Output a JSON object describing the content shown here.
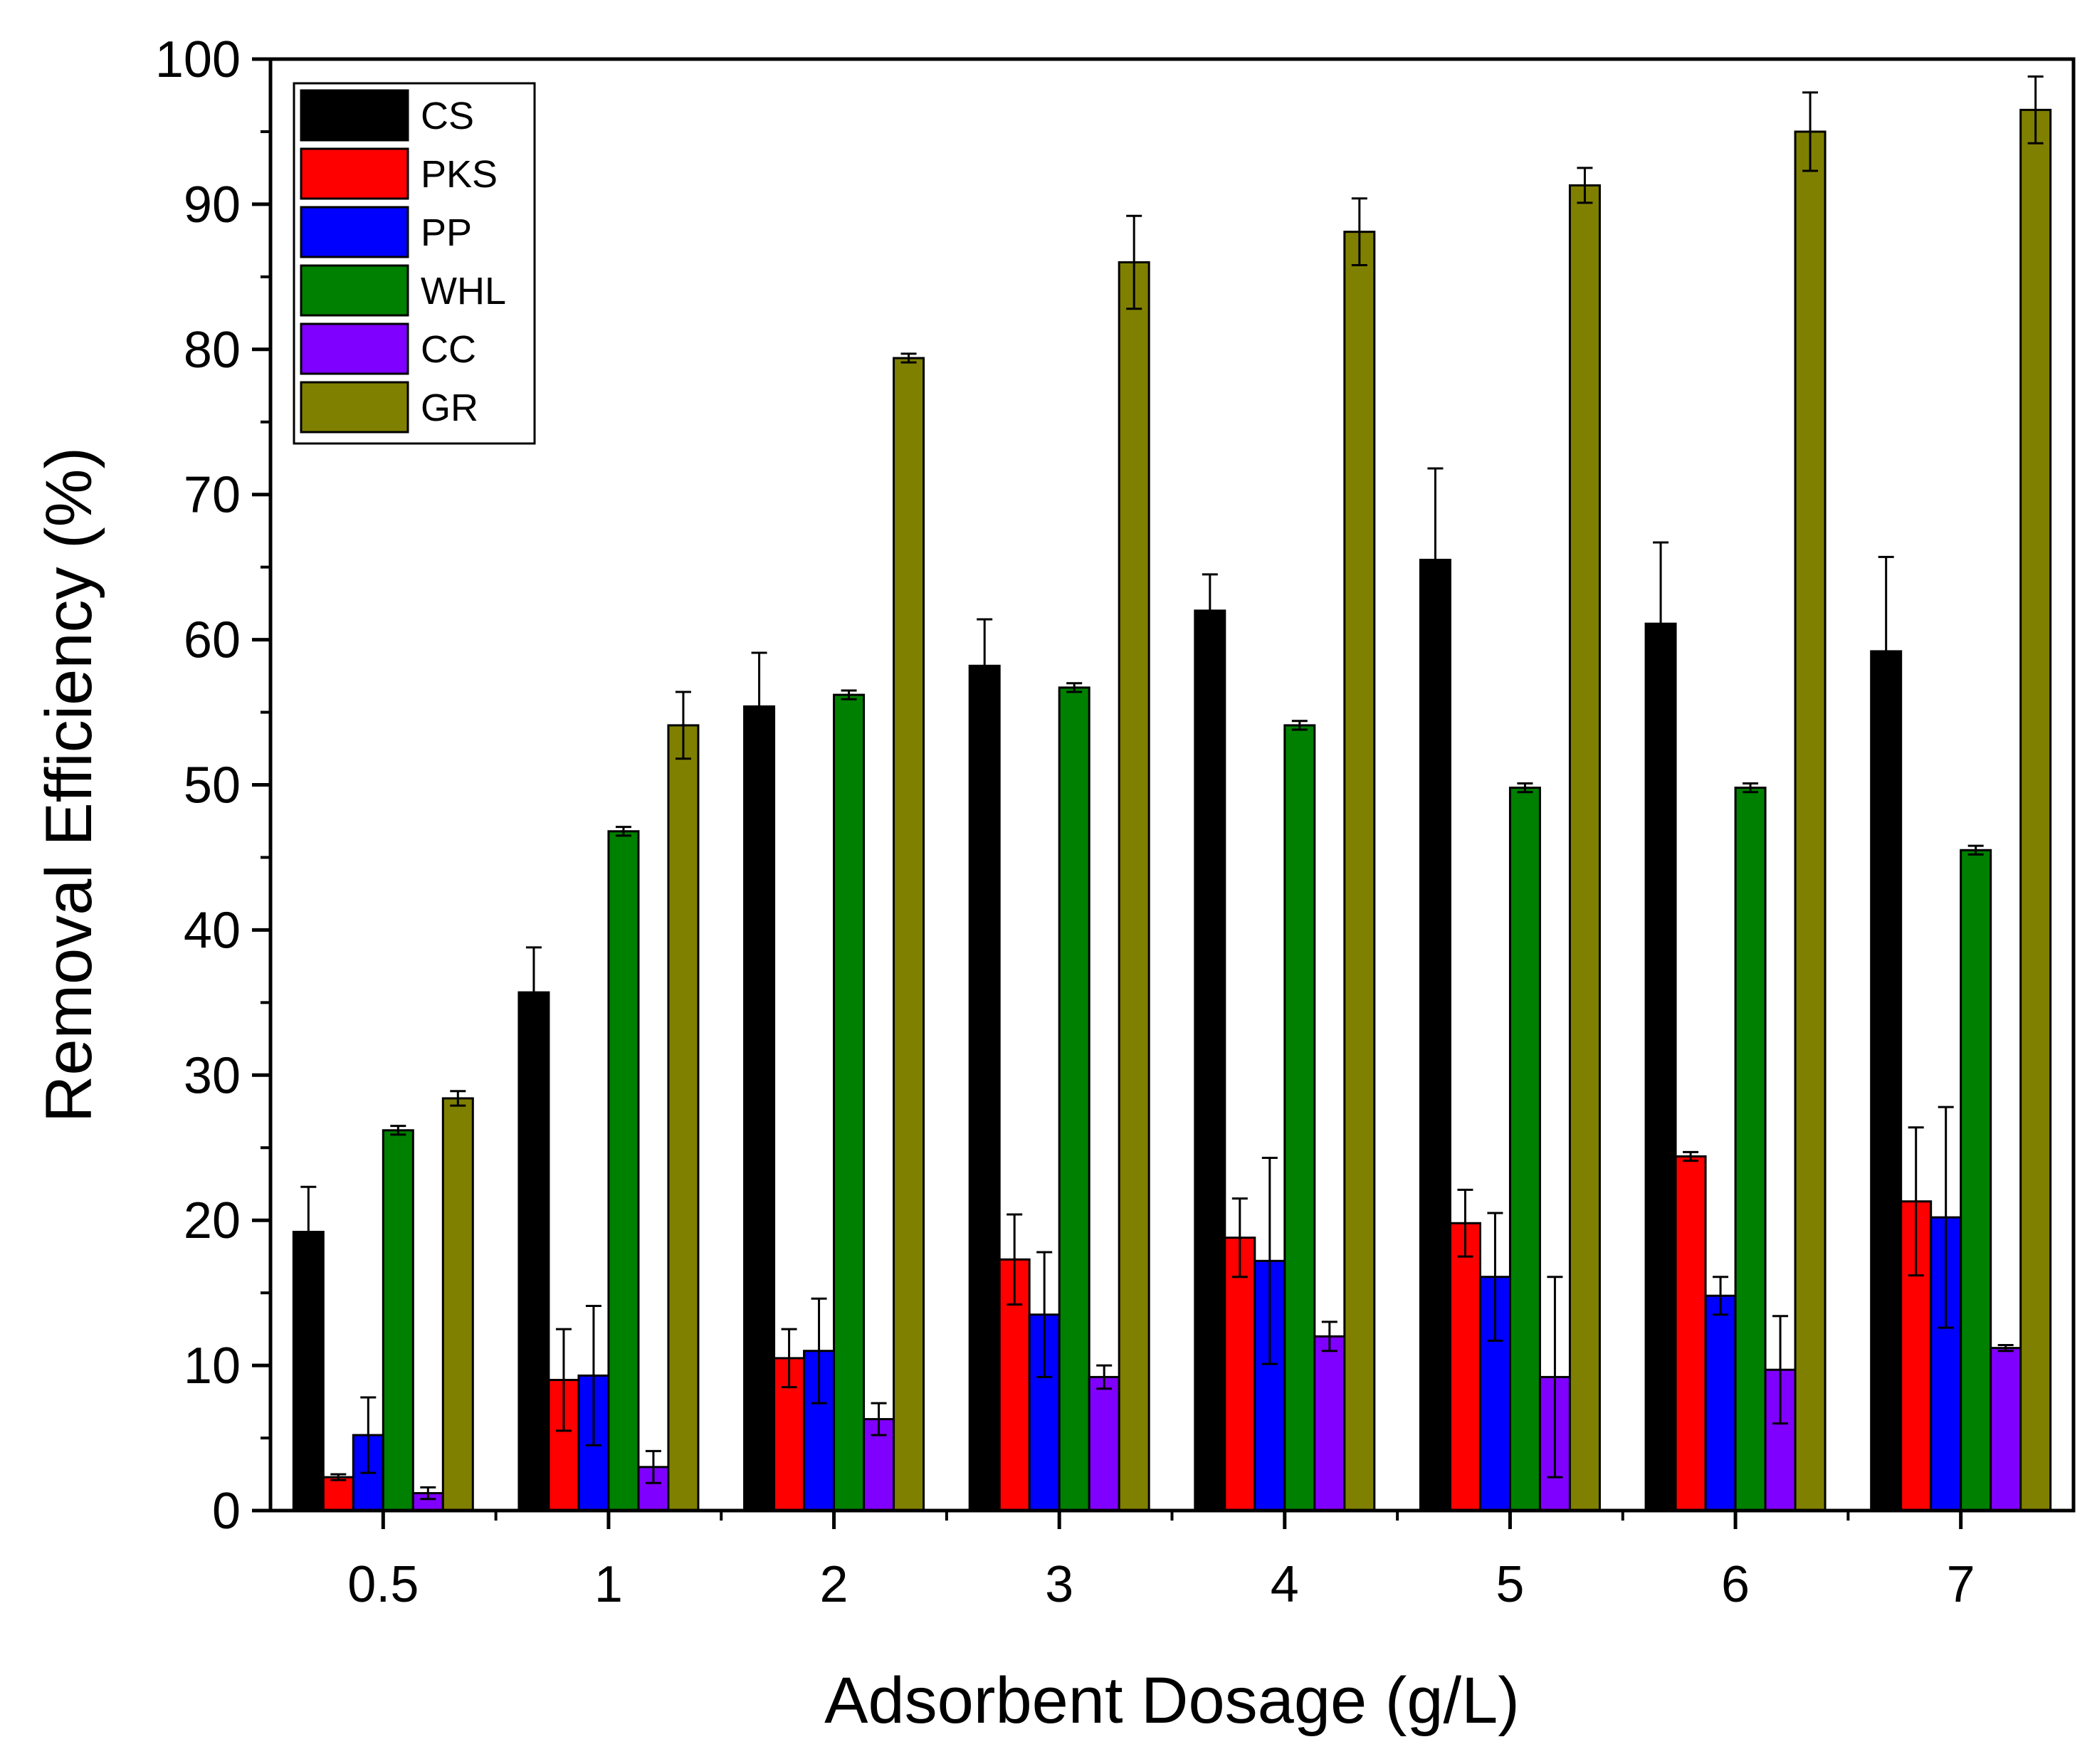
{
  "chart_data": {
    "type": "bar",
    "title": "",
    "xlabel": "Adsorbent Dosage (g/L)",
    "ylabel": "Removal Efficiency (%)",
    "ylim": [
      0,
      100
    ],
    "yticks": [
      "0",
      "10",
      "20",
      "30",
      "40",
      "50",
      "60",
      "70",
      "80",
      "90",
      "100"
    ],
    "categories": [
      "0.5",
      "1",
      "2",
      "3",
      "4",
      "5",
      "6",
      "7"
    ],
    "legend_position": "top-left",
    "series": [
      {
        "name": "CS",
        "color": "#000000",
        "values": [
          19.2,
          35.7,
          55.4,
          58.2,
          62.0,
          65.5,
          61.1,
          59.2
        ],
        "errors": [
          3.1,
          3.1,
          3.7,
          3.2,
          2.5,
          6.3,
          5.6,
          6.5
        ]
      },
      {
        "name": "PKS",
        "color": "#ff0000",
        "values": [
          2.3,
          9.0,
          10.5,
          17.3,
          18.8,
          19.8,
          24.4,
          21.3
        ],
        "errors": [
          0.2,
          3.5,
          2.0,
          3.1,
          2.7,
          2.3,
          0.3,
          5.1
        ]
      },
      {
        "name": "PP",
        "color": "#0000ff",
        "values": [
          5.2,
          9.3,
          11.0,
          13.5,
          17.2,
          16.1,
          14.8,
          20.2
        ],
        "errors": [
          2.6,
          4.8,
          3.6,
          4.3,
          7.1,
          4.4,
          1.3,
          7.6
        ]
      },
      {
        "name": "WHL",
        "color": "#008000",
        "values": [
          26.2,
          46.8,
          56.2,
          56.7,
          54.1,
          49.8,
          49.8,
          45.5
        ],
        "errors": [
          0.3,
          0.3,
          0.3,
          0.3,
          0.3,
          0.3,
          0.3,
          0.3
        ]
      },
      {
        "name": "CC",
        "color": "#8000ff",
        "values": [
          1.2,
          3.0,
          6.3,
          9.2,
          12.0,
          9.2,
          9.7,
          11.2
        ],
        "errors": [
          0.4,
          1.1,
          1.1,
          0.8,
          1.0,
          6.9,
          3.7,
          0.2
        ]
      },
      {
        "name": "GR",
        "color": "#808000",
        "values": [
          28.4,
          54.1,
          79.4,
          86.0,
          88.1,
          91.3,
          95.0,
          96.5
        ],
        "errors": [
          0.5,
          2.3,
          0.3,
          3.2,
          2.3,
          1.2,
          2.7,
          2.3
        ]
      }
    ]
  }
}
